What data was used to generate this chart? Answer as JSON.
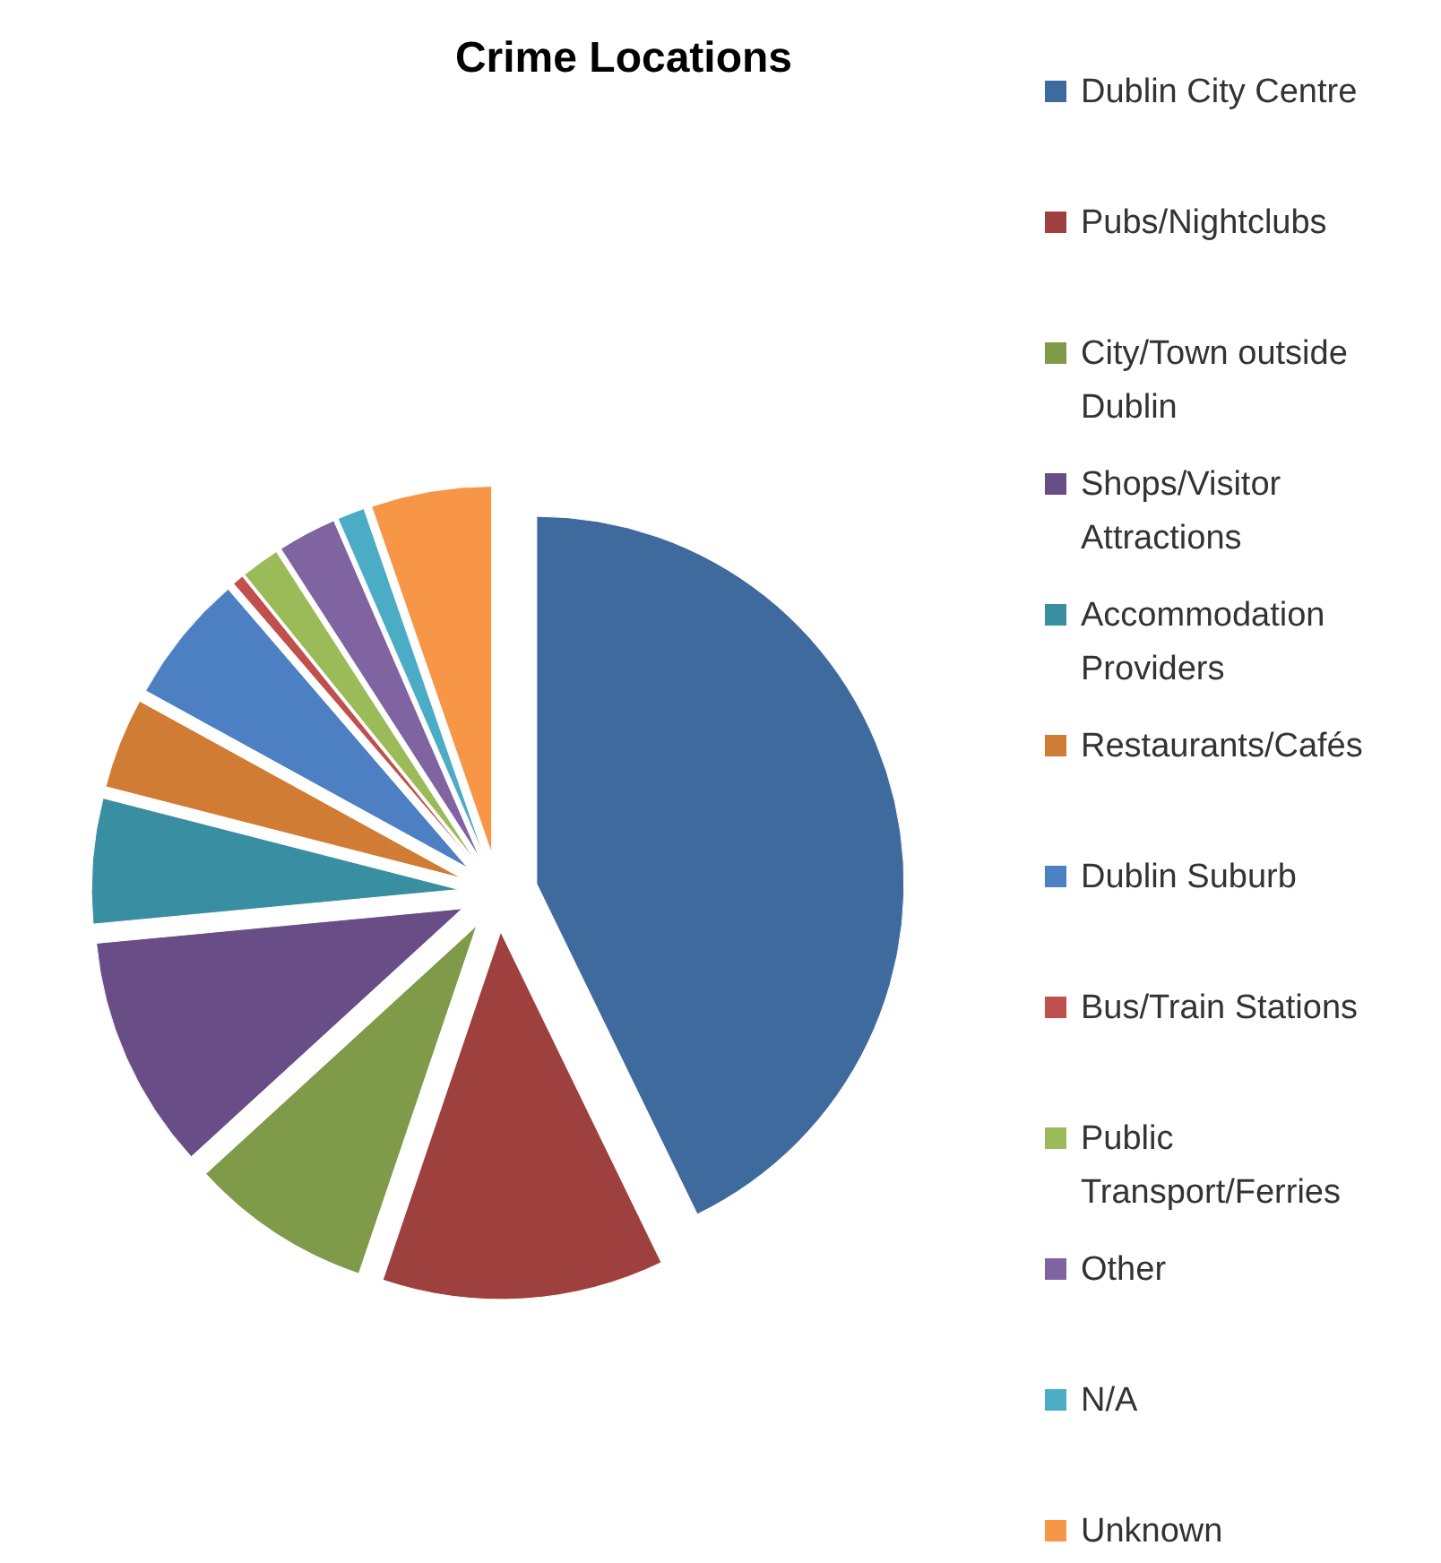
{
  "chart_data": {
    "type": "pie",
    "title": "Crime Locations",
    "categories": [
      "Dublin City Centre",
      "Pubs/Nightclubs",
      "City/Town outside Dublin",
      "Shops/Visitor Attractions",
      "Accommodation Providers",
      "Restaurants/Cafés",
      "Dublin Suburb",
      "Bus/Train Stations",
      "Public Transport/Ferries",
      "Other",
      "N/A",
      "Unknown"
    ],
    "values": [
      42.8,
      12.4,
      8,
      10.3,
      5.5,
      4,
      5.7,
      0.5,
      1.7,
      2.6,
      1.2,
      5.3
    ],
    "colors": [
      "#3f6a9e",
      "#9e413e",
      "#7f9a48",
      "#684d87",
      "#3a8ea1",
      "#d17c35",
      "#4d80c2",
      "#c0504d",
      "#9bbb59",
      "#8064a2",
      "#4bacc6",
      "#f79646"
    ],
    "legend": "right"
  }
}
